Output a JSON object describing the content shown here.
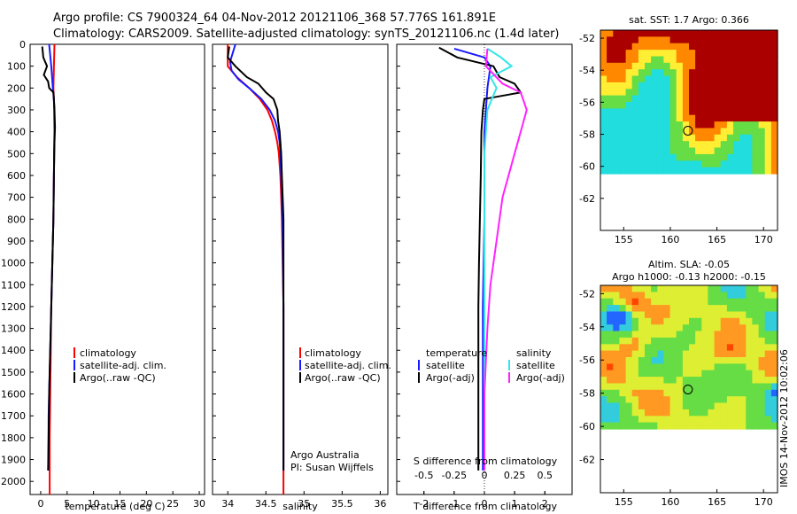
{
  "header": {
    "line1": "Argo profile: CS 7900324_64 04-Nov-2012 20121106_368 57.776S 161.891E",
    "line2": "Climatology: CARS2009. Satellite-adjusted climatology: synTS_20121106.nc (1.4d later)"
  },
  "colors": {
    "climatology": "#ff0000",
    "satellite": "#1a1aff",
    "argo": "#000000",
    "sat_salinity": "#33e6e6",
    "argo_salinity": "#ff22ff"
  },
  "chart_data": [
    {
      "type": "line",
      "xlabel": "temperature (deg C)",
      "ylabel": "",
      "xlim": [
        -2,
        31
      ],
      "ylim": [
        2060,
        0
      ],
      "xticks": [
        "0",
        "5",
        "10",
        "15",
        "20",
        "25",
        "30"
      ],
      "yticks": [
        "0",
        "100",
        "200",
        "300",
        "400",
        "500",
        "600",
        "700",
        "800",
        "900",
        "1000",
        "1100",
        "1200",
        "1300",
        "1400",
        "1500",
        "1600",
        "1700",
        "1800",
        "1900",
        "2000"
      ],
      "legend": [
        "climatology",
        "satellite-adj. clim.",
        "Argo(..raw -QC)"
      ],
      "series": [
        {
          "name": "climatology",
          "x": [
            2.6,
            2.5,
            2.4,
            2.5,
            2.6,
            2.6,
            2.55,
            2.5,
            2.45,
            2.4,
            2.3,
            2.2,
            2.1,
            2.0,
            1.95,
            1.9,
            1.85,
            1.8,
            1.75,
            1.7,
            1.7
          ],
          "y": [
            0,
            100,
            200,
            250,
            300,
            400,
            500,
            600,
            700,
            800,
            900,
            1000,
            1100,
            1200,
            1300,
            1400,
            1500,
            1600,
            1700,
            1800,
            2060
          ]
        },
        {
          "name": "satellite-adj. clim.",
          "x": [
            1.6,
            2.0,
            2.3,
            2.5,
            2.55,
            2.6,
            2.55,
            2.5,
            2.45,
            2.4,
            2.3,
            2.2,
            2.1,
            2.0,
            1.9,
            1.8,
            1.7,
            1.6,
            1.5,
            1.45
          ],
          "y": [
            0,
            100,
            200,
            250,
            300,
            400,
            500,
            600,
            700,
            800,
            900,
            1000,
            1100,
            1200,
            1300,
            1400,
            1500,
            1600,
            1700,
            1950
          ]
        },
        {
          "name": "Argo(..raw -QC)",
          "x": [
            0.3,
            0.5,
            1.2,
            0.6,
            1.4,
            1.6,
            2.4,
            2.6,
            2.7,
            2.6,
            2.55,
            2.5,
            2.45,
            2.4,
            2.3,
            2.2,
            2.1,
            2.0,
            1.9,
            1.8,
            1.7,
            1.6,
            1.5,
            1.4
          ],
          "y": [
            10,
            60,
            100,
            140,
            170,
            200,
            220,
            300,
            380,
            450,
            500,
            600,
            700,
            800,
            900,
            1000,
            1100,
            1200,
            1300,
            1400,
            1500,
            1600,
            1800,
            1950
          ]
        }
      ]
    },
    {
      "type": "line",
      "xlabel": "salinity",
      "xlim": [
        33.8,
        36.1
      ],
      "ylim": [
        2060,
        0
      ],
      "xticks": [
        "34",
        "34.5",
        "35",
        "35.5",
        "36"
      ],
      "legend": [
        "climatology",
        "satellite-adj. clim.",
        "Argo(..raw -QC)"
      ],
      "annotation": [
        "Argo Australia",
        "PI: Susan Wijffels"
      ],
      "series": [
        {
          "name": "climatology",
          "x": [
            34.0,
            34.0,
            34.12,
            34.28,
            34.42,
            34.52,
            34.58,
            34.62,
            34.65,
            34.67,
            34.69,
            34.7,
            34.71,
            34.72,
            34.73,
            34.73,
            34.73,
            34.73
          ],
          "y": [
            0,
            100,
            150,
            200,
            250,
            300,
            350,
            400,
            450,
            500,
            600,
            700,
            800,
            1000,
            1200,
            1500,
            1800,
            2060
          ]
        },
        {
          "name": "satellite-adj. clim.",
          "x": [
            34.1,
            34.03,
            34.05,
            34.14,
            34.28,
            34.44,
            34.55,
            34.62,
            34.66,
            34.68,
            34.69,
            34.7,
            34.71,
            34.72,
            34.73,
            34.73,
            34.73,
            34.73
          ],
          "y": [
            0,
            80,
            120,
            160,
            200,
            250,
            300,
            350,
            400,
            450,
            500,
            600,
            700,
            900,
            1200,
            1500,
            1800,
            1950
          ]
        },
        {
          "name": "Argo(..raw -QC)",
          "x": [
            34.02,
            34.0,
            34.1,
            34.25,
            34.4,
            34.5,
            34.6,
            34.65,
            34.66,
            34.68,
            34.7,
            34.71,
            34.72,
            34.73,
            34.73,
            34.73,
            34.73,
            34.73,
            34.73
          ],
          "y": [
            10,
            60,
            100,
            150,
            180,
            220,
            250,
            300,
            350,
            400,
            500,
            600,
            700,
            800,
            1000,
            1300,
            1600,
            1800,
            1950
          ]
        }
      ]
    },
    {
      "type": "line",
      "xlabel": "T difference from climatology",
      "xlabel_top": "S difference from climatology",
      "xlim": [
        -2.9,
        2.9
      ],
      "ylim": [
        2060,
        0
      ],
      "xticks": [
        "-2",
        "-1",
        "0",
        "1",
        "2"
      ],
      "xticks_top": [
        "-0.5",
        "-0.25",
        "0",
        "0.25",
        "0.5"
      ],
      "legend_left_title": "temperature",
      "legend_right_title": "salinity",
      "legend": [
        "satellite",
        "Argo(-adj)",
        "satellite",
        "Argo(-adj)"
      ],
      "series": [
        {
          "name": "satellite",
          "x": [
            -1.0,
            0.0,
            0.2,
            0.1,
            0.05,
            0.0,
            0.0,
            0.0,
            -0.05,
            -0.05,
            -0.05
          ],
          "y": [
            20,
            60,
            100,
            200,
            300,
            400,
            500,
            800,
            1200,
            1600,
            1950
          ]
        },
        {
          "name": "Argo(-adj)",
          "x": [
            -1.5,
            -0.9,
            0.3,
            0.5,
            1.0,
            1.2,
            0.0,
            -0.05,
            -0.1,
            -0.12,
            -0.15,
            -0.18,
            -0.2,
            -0.2,
            -0.2
          ],
          "y": [
            15,
            60,
            100,
            150,
            180,
            220,
            250,
            300,
            400,
            600,
            800,
            1000,
            1200,
            1600,
            1950
          ]
        },
        {
          "name": "satellite",
          "x": [
            0.1,
            0.55,
            0.9,
            0.2,
            0.4,
            0.1,
            0.0,
            0.0,
            0.0,
            0.0
          ],
          "y": [
            20,
            60,
            100,
            150,
            200,
            300,
            500,
            800,
            1200,
            1950
          ]
        },
        {
          "name": "Argo(-adj)",
          "x": [
            0.1,
            0.05,
            0.6,
            1.2,
            1.4,
            1.2,
            1.0,
            0.6,
            0.4,
            0.2,
            0.1,
            0.0,
            0.0
          ],
          "y": [
            20,
            100,
            180,
            220,
            300,
            400,
            500,
            700,
            900,
            1100,
            1300,
            1600,
            1950
          ]
        }
      ]
    }
  ],
  "map_sst": {
    "title": "sat. SST: 1.7 Argo: 0.366",
    "xticks": [
      "155",
      "160",
      "165",
      "170"
    ],
    "yticks": [
      "-52",
      "-54",
      "-56",
      "-58",
      "-60",
      "-62"
    ]
  },
  "map_sla": {
    "title1": "Altim. SLA: -0.05",
    "title2": "Argo h1000: -0.13 h2000: -0.15",
    "xticks": [
      "155",
      "160",
      "165",
      "170"
    ],
    "yticks": [
      "-52",
      "-54",
      "-56",
      "-58",
      "-60",
      "-62"
    ]
  },
  "footer_stamp": "IMOS 14-Nov-2012 10:02:06"
}
